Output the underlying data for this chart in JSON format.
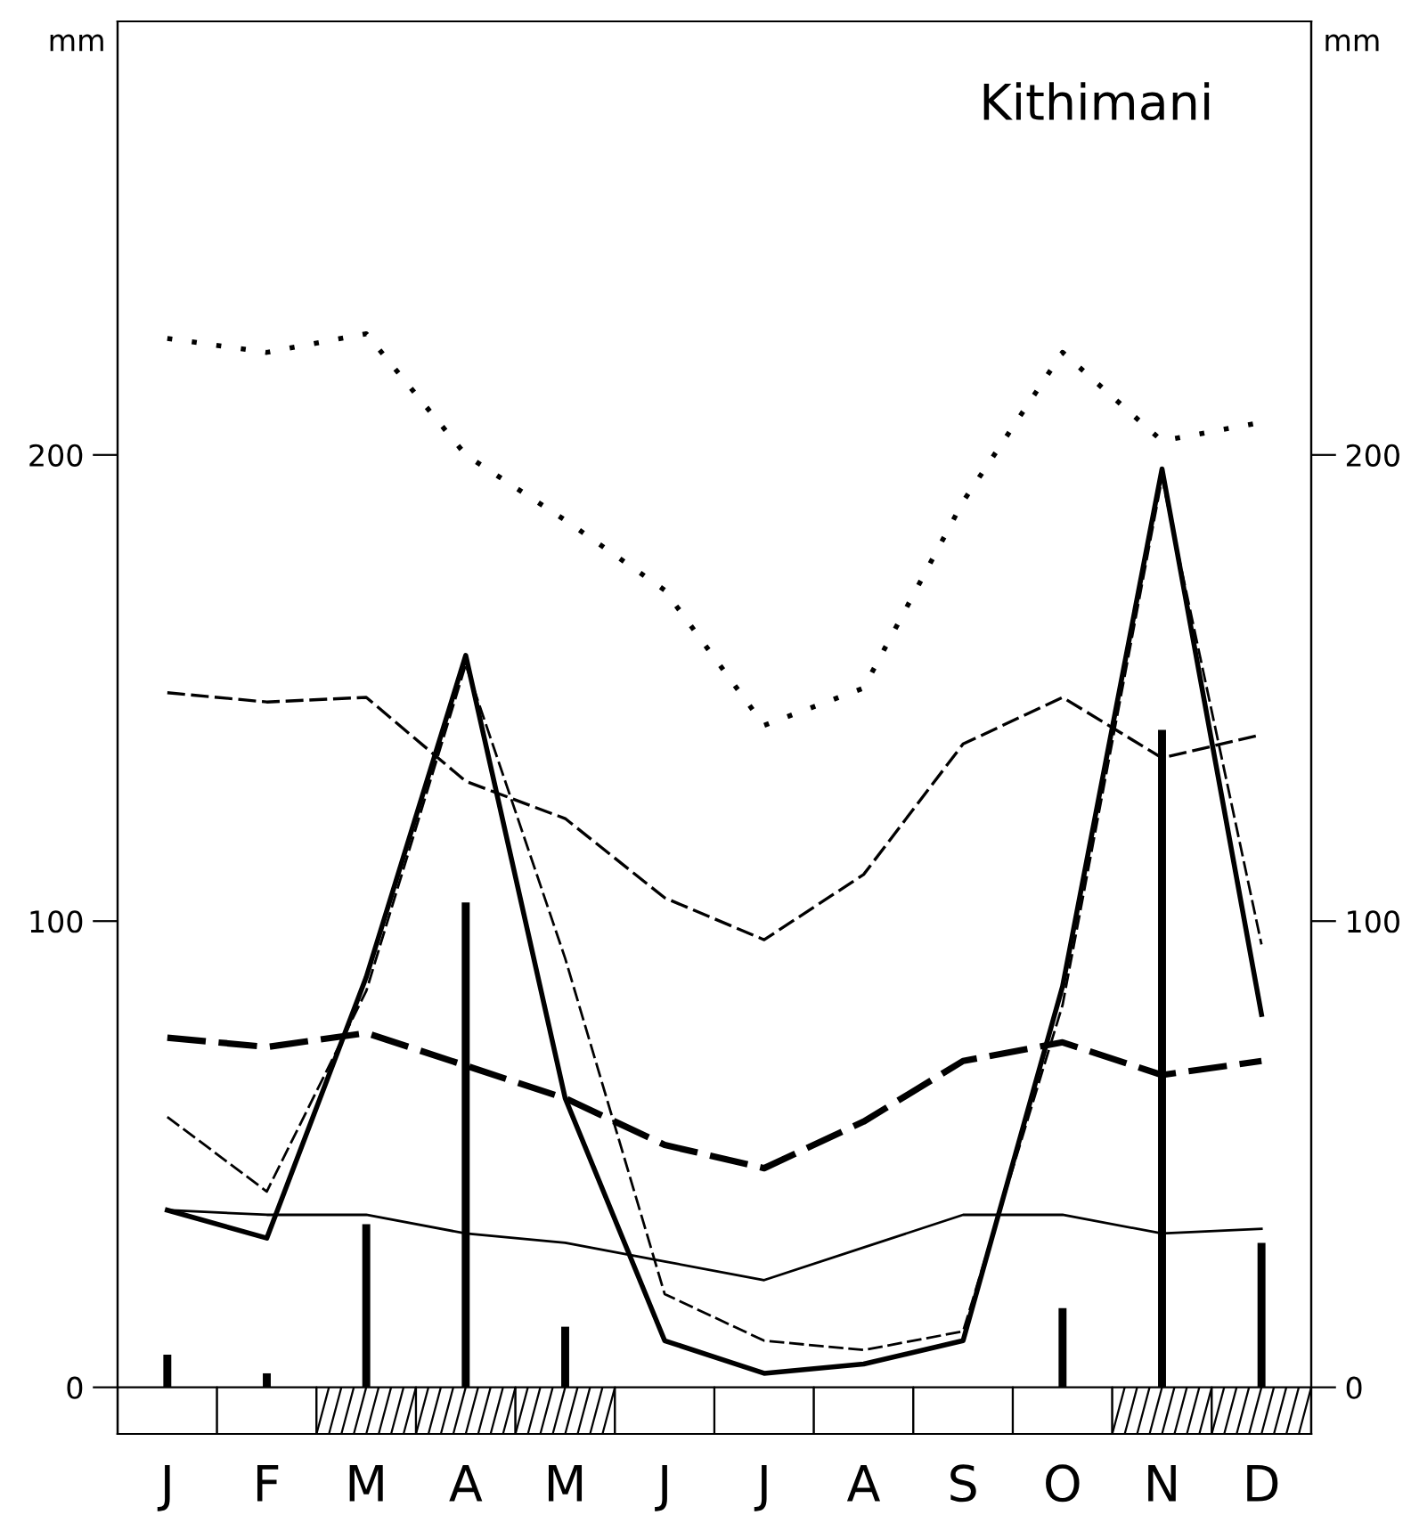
{
  "chart_data": {
    "type": "line",
    "title": "Kithimani",
    "ylabel": "mm",
    "y2label": "mm",
    "categories": [
      "J",
      "F",
      "M",
      "A",
      "M",
      "J",
      "J",
      "A",
      "S",
      "O",
      "N",
      "D"
    ],
    "series": [
      {
        "line_style": "dotted",
        "color": "#000000",
        "values": [
          225,
          222,
          226,
          200,
          186,
          171,
          142,
          150,
          190,
          222,
          203,
          207
        ]
      },
      {
        "line_style": "dashed",
        "color": "#000000",
        "values": [
          149,
          147,
          148,
          130,
          122,
          105,
          96,
          110,
          138,
          148,
          135,
          140
        ]
      },
      {
        "line_style": "dashed",
        "color": "#000000",
        "values": [
          75,
          73,
          76,
          69,
          62,
          52,
          47,
          57,
          70,
          74,
          67,
          70
        ]
      },
      {
        "line_style": "solid",
        "color": "#000000",
        "values": [
          38,
          37,
          37,
          33,
          31,
          27,
          23,
          30,
          37,
          37,
          33,
          34
        ]
      },
      {
        "line_style": "dashed",
        "color": "#000000",
        "values": [
          58,
          42,
          85,
          155,
          92,
          20,
          10,
          8,
          12,
          82,
          195,
          95
        ]
      },
      {
        "line_style": "solid",
        "color": "#000000",
        "values": [
          38,
          32,
          88,
          157,
          62,
          10,
          3,
          5,
          10,
          86,
          197,
          80
        ]
      },
      {
        "type": "bar",
        "color": "#000000",
        "values": [
          7,
          3,
          35,
          104,
          13,
          0,
          0,
          0,
          0,
          17,
          141,
          31
        ]
      }
    ],
    "ylim": [
      -10,
      293
    ],
    "yticks": [
      0,
      100,
      200
    ],
    "y2lim": [
      -10,
      293
    ],
    "y2ticks": [
      0,
      100,
      200
    ],
    "grid": false
  }
}
